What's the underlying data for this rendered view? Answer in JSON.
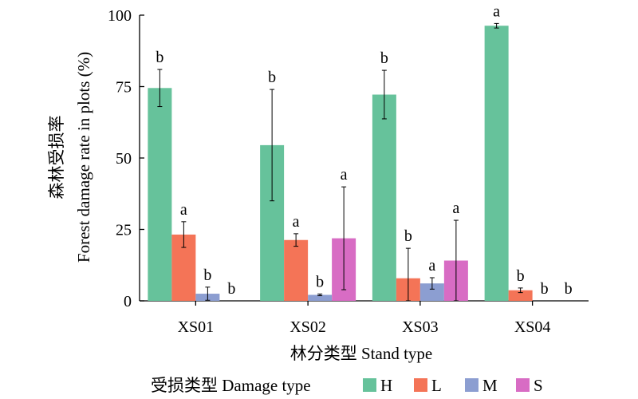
{
  "chart_data": {
    "type": "bar",
    "ylabel_line1": "森林受损率",
    "ylabel_line2": "Forest damage rate in plots (%)",
    "xlabel": "林分类型 Stand type",
    "categories": [
      "XS01",
      "XS02",
      "XS03",
      "XS04"
    ],
    "ylim": [
      0,
      100
    ],
    "yticks": [
      0,
      25,
      50,
      75,
      100
    ],
    "legend_title": "受损类型 Damage type",
    "legend_position": "bottom",
    "series": [
      {
        "name": "H",
        "color": "#66c29b",
        "values": [
          74.5,
          54.5,
          72.2,
          96.3
        ],
        "errors": [
          6.5,
          19.5,
          8.5,
          0.8
        ],
        "letters": [
          "b",
          "b",
          "b",
          "a"
        ]
      },
      {
        "name": "L",
        "color": "#f47457",
        "values": [
          23.2,
          21.3,
          7.9,
          3.7
        ],
        "errors": [
          4.5,
          2.2,
          10.5,
          0.8
        ],
        "letters": [
          "a",
          "a",
          "b",
          "b"
        ]
      },
      {
        "name": "M",
        "color": "#8c9ed1",
        "values": [
          2.5,
          2.1,
          6.1,
          0
        ],
        "errors": [
          2.3,
          0.3,
          2.0,
          0
        ],
        "letters": [
          "b",
          "b",
          "a",
          "b"
        ]
      },
      {
        "name": "S",
        "color": "#d86cc4",
        "values": [
          0,
          21.9,
          14.1,
          0
        ],
        "errors": [
          0,
          18.0,
          14.1,
          0
        ],
        "letters": [
          "b",
          "a",
          "a",
          "b"
        ]
      }
    ]
  }
}
